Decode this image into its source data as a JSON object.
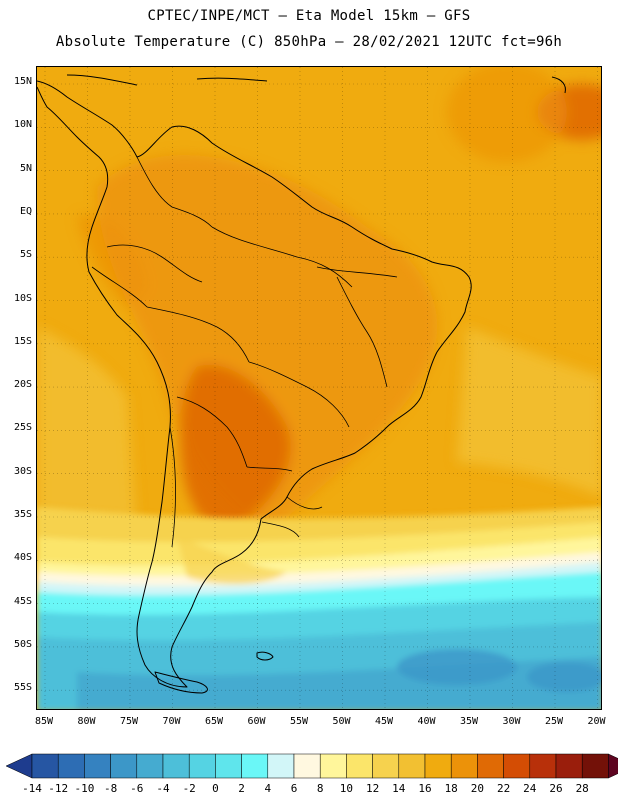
{
  "header": {
    "line1": "CPTEC/INPE/MCT –  Eta Model 15km – GFS",
    "line2": "Absolute Temperature (C) 850hPa – 28/02/2021 12UTC fct=96h"
  },
  "map": {
    "lat_labels": [
      "15N",
      "10N",
      "5N",
      "EQ",
      "5S",
      "10S",
      "15S",
      "20S",
      "25S",
      "30S",
      "35S",
      "40S",
      "45S",
      "50S",
      "55S"
    ],
    "lon_labels": [
      "85W",
      "80W",
      "75W",
      "70W",
      "65W",
      "60W",
      "55W",
      "50W",
      "45W",
      "40W",
      "35W",
      "30W",
      "25W",
      "20W"
    ],
    "temperature_field": {
      "variable": "Absolute Temperature",
      "units": "C",
      "level": "850hPa",
      "features": [
        {
          "region": "tropical ocean and most of the continent",
          "range_c": "16-20"
        },
        {
          "region": "northern South America and Amazon",
          "range_c": "18-20"
        },
        {
          "region": "Paraguay / northern Argentina / Chaco",
          "range_c": "20-22"
        },
        {
          "region": "eastern Atlantic near 10N 25W",
          "range_c": "20-22"
        },
        {
          "region": "Patagonia and southern ocean",
          "range_c": "0-6"
        },
        {
          "region": "transition band near 40S",
          "range_c": "8-12"
        }
      ]
    }
  },
  "colorbar": {
    "colors": [
      "#1e3c8e",
      "#2656a3",
      "#2d6db4",
      "#3582c0",
      "#3c97c8",
      "#45abd0",
      "#4dbfd9",
      "#55d3e3",
      "#5fe5ec",
      "#6af7f7",
      "#d2f6f8",
      "#fff8e0",
      "#fff69b",
      "#fbe56a",
      "#f6d24e",
      "#f2c032",
      "#f0ab0f",
      "#ec9209",
      "#e06a05",
      "#d44d04",
      "#b8300a",
      "#9a1e0c",
      "#731108",
      "#5e0420"
    ],
    "labels": [
      "-14",
      "-12",
      "-10",
      "-8",
      "-6",
      "-4",
      "-2",
      "0",
      "2",
      "4",
      "6",
      "8",
      "10",
      "12",
      "14",
      "16",
      "18",
      "20",
      "22",
      "24",
      "26",
      "28"
    ]
  }
}
